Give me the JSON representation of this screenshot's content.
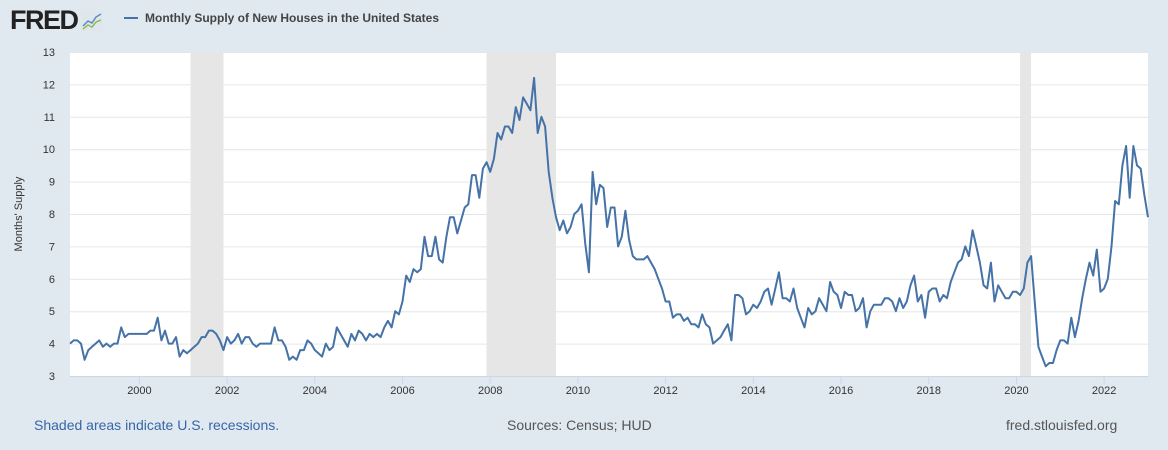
{
  "header": {
    "logo_text": "FRED",
    "legend_label": "Monthly Supply of New Houses in the United States"
  },
  "footer": {
    "recessions_note": "Shaded areas indicate U.S. recessions.",
    "sources": "Sources: Census; HUD",
    "site": "fred.stlouisfed.org"
  },
  "colors": {
    "series": "#4572a7",
    "recession": "#e6e6e6",
    "background": "#e1e9f0",
    "grid": "#e6e6e6"
  },
  "chart_data": {
    "type": "line",
    "title": "Monthly Supply of New Houses in the United States",
    "xlabel": "",
    "ylabel": "Months' Supply",
    "ylim": [
      3,
      13
    ],
    "yticks": [
      3,
      4,
      5,
      6,
      7,
      8,
      9,
      10,
      11,
      12,
      13
    ],
    "xticks": [
      "2000",
      "2002",
      "2004",
      "2006",
      "2008",
      "2010",
      "2012",
      "2014",
      "2016",
      "2018",
      "2020",
      "2022"
    ],
    "xlim": [
      "1998-06",
      "2023-01"
    ],
    "grid": "horizontal",
    "recessions": [
      [
        "2001-03",
        "2001-11"
      ],
      [
        "2007-12",
        "2009-06"
      ],
      [
        "2020-02",
        "2020-04"
      ]
    ],
    "series": [
      {
        "name": "Monthly Supply of New Houses in the United States",
        "start": "1998-06",
        "frequency": "monthly",
        "values": [
          4.0,
          4.1,
          4.1,
          4.0,
          3.5,
          3.8,
          3.9,
          4.0,
          4.1,
          3.9,
          4.0,
          3.9,
          4.0,
          4.0,
          4.5,
          4.2,
          4.3,
          4.3,
          4.3,
          4.3,
          4.3,
          4.3,
          4.4,
          4.4,
          4.8,
          4.1,
          4.4,
          4.0,
          4.0,
          4.2,
          3.6,
          3.8,
          3.7,
          3.8,
          3.9,
          4.0,
          4.2,
          4.2,
          4.4,
          4.4,
          4.3,
          4.1,
          3.8,
          4.2,
          4.0,
          4.1,
          4.3,
          4.0,
          4.2,
          4.2,
          4.0,
          3.9,
          4.0,
          4.0,
          4.0,
          4.0,
          4.5,
          4.1,
          4.1,
          3.9,
          3.5,
          3.6,
          3.5,
          3.8,
          3.8,
          4.1,
          4.0,
          3.8,
          3.7,
          3.6,
          4.0,
          3.8,
          3.9,
          4.5,
          4.3,
          4.1,
          3.9,
          4.3,
          4.1,
          4.4,
          4.3,
          4.1,
          4.3,
          4.2,
          4.3,
          4.2,
          4.5,
          4.7,
          4.5,
          5.0,
          4.9,
          5.3,
          6.1,
          5.9,
          6.3,
          6.2,
          6.3,
          7.3,
          6.7,
          6.7,
          7.3,
          6.6,
          6.5,
          7.3,
          7.9,
          7.9,
          7.4,
          7.8,
          8.2,
          8.3,
          9.2,
          9.2,
          8.5,
          9.4,
          9.6,
          9.3,
          9.7,
          10.5,
          10.3,
          10.7,
          10.7,
          10.5,
          11.3,
          10.9,
          11.6,
          11.4,
          11.2,
          12.2,
          10.5,
          11.0,
          10.7,
          9.3,
          8.5,
          7.9,
          7.5,
          7.8,
          7.4,
          7.6,
          8.0,
          8.1,
          8.3,
          7.1,
          6.2,
          9.3,
          8.3,
          8.9,
          8.8,
          7.6,
          8.2,
          8.2,
          7.0,
          7.3,
          8.1,
          7.2,
          6.7,
          6.6,
          6.6,
          6.6,
          6.7,
          6.5,
          6.3,
          6.0,
          5.7,
          5.3,
          5.3,
          4.8,
          4.9,
          4.9,
          4.7,
          4.8,
          4.6,
          4.6,
          4.5,
          4.9,
          4.6,
          4.5,
          4.0,
          4.1,
          4.2,
          4.4,
          4.6,
          4.1,
          5.5,
          5.5,
          5.4,
          4.9,
          5.0,
          5.2,
          5.1,
          5.3,
          5.6,
          5.7,
          5.2,
          5.7,
          6.2,
          5.4,
          5.4,
          5.3,
          5.7,
          5.1,
          4.8,
          4.5,
          5.1,
          4.9,
          5.0,
          5.4,
          5.2,
          5.0,
          5.9,
          5.6,
          5.5,
          5.1,
          5.6,
          5.5,
          5.5,
          5.0,
          5.1,
          5.4,
          4.5,
          5.0,
          5.2,
          5.2,
          5.2,
          5.4,
          5.4,
          5.3,
          5.0,
          5.4,
          5.1,
          5.3,
          5.8,
          6.1,
          5.3,
          5.5,
          4.8,
          5.6,
          5.7,
          5.7,
          5.3,
          5.5,
          5.4,
          5.9,
          6.2,
          6.5,
          6.6,
          7.0,
          6.7,
          7.5,
          7.0,
          6.5,
          5.8,
          5.7,
          6.5,
          5.3,
          5.8,
          5.6,
          5.4,
          5.4,
          5.6,
          5.6,
          5.5,
          5.7,
          6.5,
          6.7,
          5.3,
          3.9,
          3.6,
          3.3,
          3.4,
          3.4,
          3.8,
          4.1,
          4.1,
          4.0,
          4.8,
          4.2,
          4.7,
          5.4,
          6.0,
          6.5,
          6.1,
          6.9,
          5.6,
          5.7,
          6.0,
          7.0,
          8.4,
          8.3,
          9.5,
          10.1,
          8.5,
          10.1,
          9.5,
          9.4,
          8.6,
          7.9
        ]
      }
    ]
  }
}
